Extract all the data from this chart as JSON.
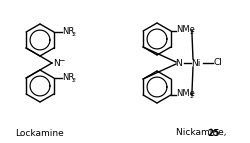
{
  "bg_color": "#ffffff",
  "title_lockamine": "Lockamine",
  "title_nickamine": "Nickamine, ",
  "title_nickamine_bold": "25",
  "lw": 1.0
}
